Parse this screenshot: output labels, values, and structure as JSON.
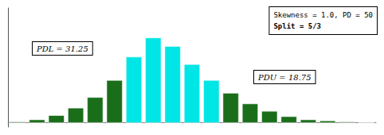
{
  "chart_data": {
    "type": "bar",
    "values": [
      1,
      3,
      7,
      14,
      24,
      40,
      62,
      80,
      72,
      55,
      40,
      28,
      18,
      11,
      6,
      3,
      2,
      1,
      0.5
    ],
    "colors": [
      "#1a6e1a",
      "#1a6e1a",
      "#1a6e1a",
      "#1a6e1a",
      "#1a6e1a",
      "#1a6e1a",
      "#00e5e5",
      "#00e5e5",
      "#00e5e5",
      "#00e5e5",
      "#00e5e5",
      "#1a6e1a",
      "#1a6e1a",
      "#1a6e1a",
      "#1a6e1a",
      "#1a6e1a",
      "#1a6e1a",
      "#1a6e1a",
      "#1a6e1a"
    ],
    "ylim": [
      -4,
      108
    ],
    "grid": false,
    "tick_labels": false,
    "annotations": [
      "PDL = 31.25",
      "PDU = 18.75",
      "Skewness = 1.0, PD = 50",
      "Split = 5/3"
    ]
  }
}
